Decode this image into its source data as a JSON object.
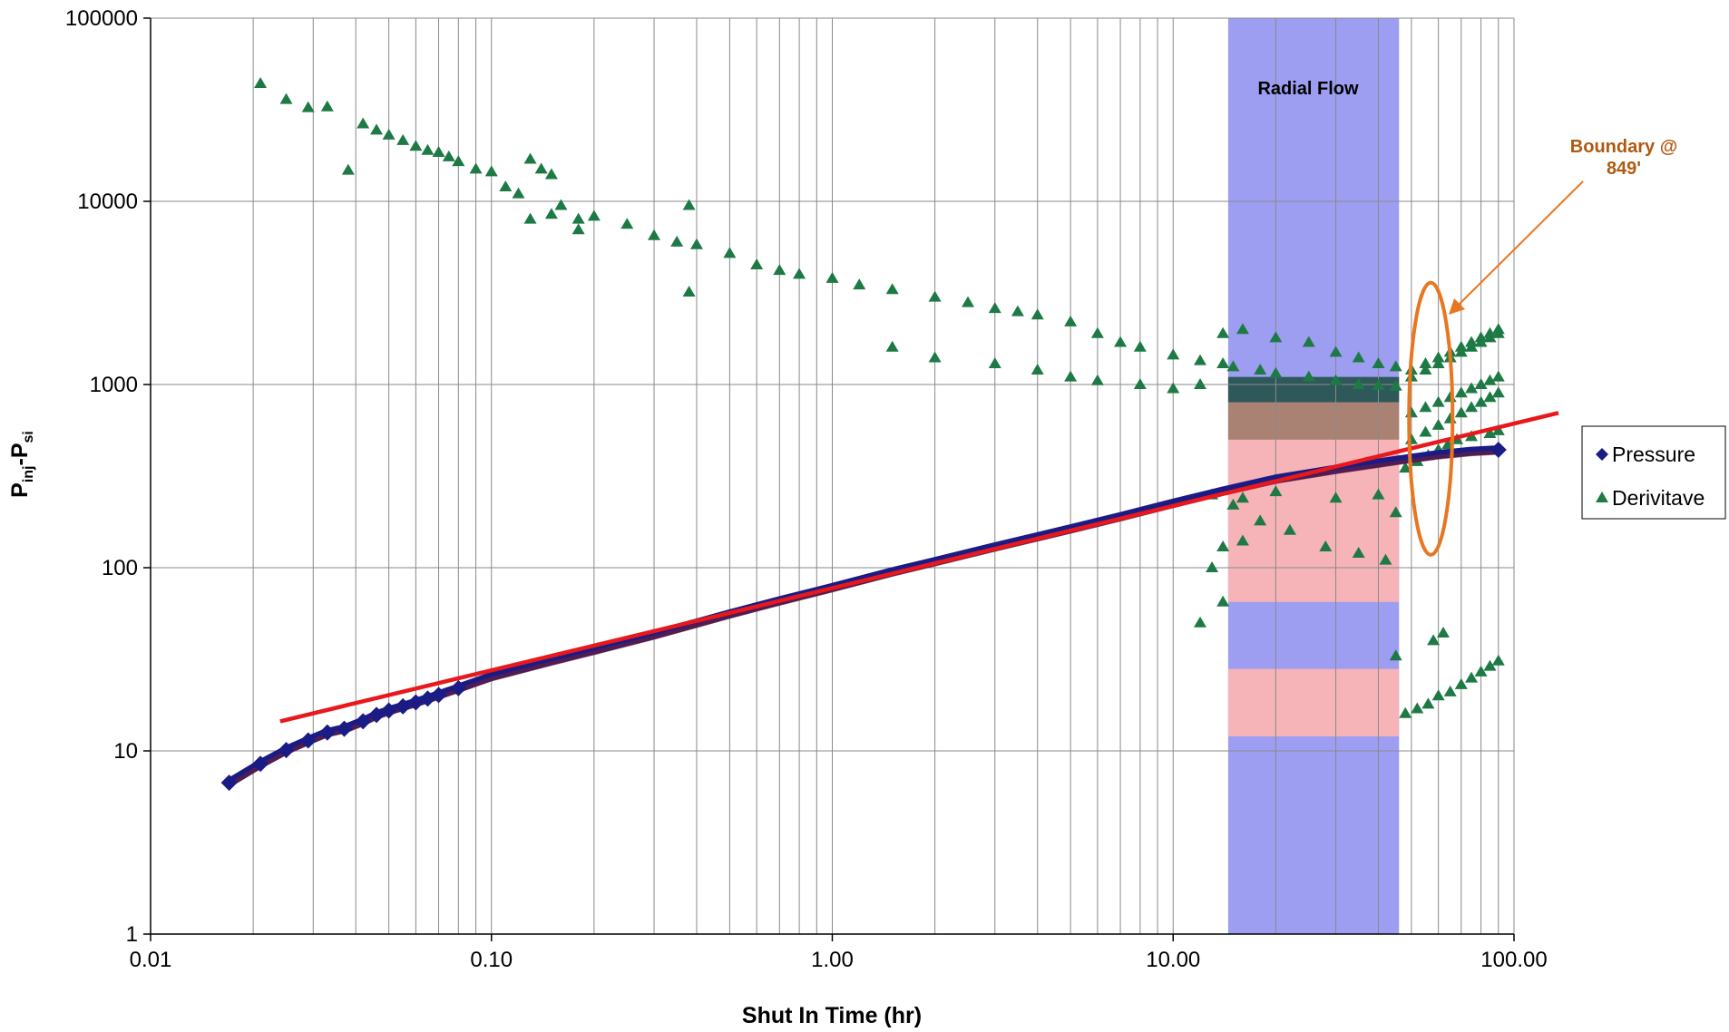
{
  "chart_data": {
    "type": "scatter",
    "xscale": "log",
    "yscale": "log",
    "xlim": [
      0.01,
      100
    ],
    "ylim": [
      1,
      100000
    ],
    "grid": true,
    "xlabel": "Shut In Time (hr)",
    "ylabel_main": "P",
    "ylabel_sub1": "inj",
    "ylabel_mid": "-P",
    "ylabel_sub2": "si",
    "x_tick_labels": [
      "0.01",
      "0.10",
      "1.00",
      "10.00",
      "100.00"
    ],
    "y_tick_labels": [
      "1",
      "10",
      "100",
      "1000",
      "10000",
      "100000"
    ],
    "legend_position": "right",
    "band_label": "Radial Flow",
    "band_x": [
      14.5,
      46
    ],
    "annotation": {
      "text_line1": "Boundary @",
      "text_line2": "849'",
      "x": 57,
      "y": 650,
      "color": "#e87722"
    },
    "colors": {
      "pressure": "#1b1b86",
      "derivative": "#1e7a45",
      "fit_line": "#e8181c",
      "band": "#9d9ef2",
      "band_pink": "#f6b3b8",
      "annotation_text": "#b05a10"
    },
    "fit_line": {
      "x": [
        0.024,
        135
      ],
      "y": [
        14.5,
        700
      ]
    },
    "series": [
      {
        "name": "Pressure",
        "marker": "diamond",
        "x": [
          0.017,
          0.021,
          0.025,
          0.029,
          0.033,
          0.037,
          0.042,
          0.046,
          0.05,
          0.055,
          0.06,
          0.065,
          0.07,
          0.08,
          0.09,
          0.1,
          0.15,
          0.2,
          0.3,
          0.5,
          0.7,
          1.0,
          1.5,
          2,
          3,
          5,
          7,
          10,
          14,
          20,
          30,
          45,
          60,
          75,
          90
        ],
        "y": [
          6.7,
          8.5,
          10.1,
          11.4,
          12.6,
          13.2,
          14.5,
          15.7,
          16.6,
          17.5,
          18.4,
          19.3,
          20.2,
          22,
          23.8,
          25.5,
          31,
          35.5,
          43,
          56,
          66,
          78,
          95,
          108,
          130,
          163,
          190,
          225,
          262,
          305,
          345,
          385,
          415,
          432,
          440
        ]
      },
      {
        "name": "Derivitave",
        "marker": "triangle",
        "x": [
          0.021,
          0.025,
          0.029,
          0.033,
          0.038,
          0.042,
          0.046,
          0.05,
          0.055,
          0.06,
          0.065,
          0.07,
          0.075,
          0.08,
          0.09,
          0.1,
          0.11,
          0.12,
          0.13,
          0.14,
          0.15,
          0.16,
          0.18,
          0.2,
          0.25,
          0.3,
          0.35,
          0.38,
          0.4,
          0.5,
          0.6,
          0.7,
          0.8,
          1.0,
          1.2,
          1.5,
          2,
          2.5,
          3,
          3.5,
          4,
          5,
          6,
          7,
          8,
          10,
          12,
          14,
          15,
          18,
          20,
          25,
          30,
          35,
          40,
          45,
          0.13,
          0.15,
          0.18,
          0.38,
          1.5,
          2,
          3,
          4,
          5,
          6,
          8,
          10,
          12,
          14,
          16,
          20,
          25,
          30,
          35,
          40,
          45,
          50,
          55,
          60,
          65,
          70,
          75,
          80,
          85,
          90,
          50,
          55,
          60,
          65,
          70,
          75,
          80,
          85,
          90,
          50,
          55,
          60,
          65,
          70,
          75,
          80,
          85,
          90,
          50,
          55,
          60,
          65,
          70,
          75,
          80,
          85,
          90,
          48,
          52,
          56,
          60,
          64,
          68,
          75,
          85,
          90,
          13,
          14,
          16,
          45,
          58,
          62,
          48,
          52,
          56,
          60,
          65,
          70,
          75,
          80,
          85,
          90,
          13,
          15,
          18,
          22,
          28,
          35,
          42,
          12,
          14,
          16,
          20,
          30,
          40,
          45
        ],
        "y": [
          44000,
          36000,
          32500,
          32800,
          14800,
          26500,
          24500,
          23000,
          21500,
          20000,
          19000,
          18500,
          17500,
          16500,
          15000,
          14500,
          12000,
          11000,
          17000,
          15000,
          14000,
          9500,
          8000,
          8300,
          7500,
          6500,
          6000,
          9500,
          5800,
          5200,
          4500,
          4200,
          4000,
          3800,
          3500,
          3300,
          3000,
          2800,
          2600,
          2500,
          2400,
          2200,
          1900,
          1700,
          1600,
          1450,
          1350,
          1300,
          1250,
          1200,
          1150,
          1100,
          1050,
          1000,
          990,
          980,
          8000,
          8500,
          7000,
          3200,
          1600,
          1400,
          1300,
          1200,
          1100,
          1050,
          1000,
          950,
          1000,
          1900,
          2000,
          1800,
          1700,
          1500,
          1400,
          1300,
          1250,
          1200,
          1300,
          1400,
          1500,
          1600,
          1700,
          1800,
          1900,
          2000,
          1100,
          1200,
          1300,
          1400,
          1500,
          1600,
          1700,
          1800,
          1900,
          700,
          750,
          800,
          850,
          900,
          950,
          1000,
          1050,
          1100,
          500,
          550,
          600,
          650,
          700,
          750,
          800,
          850,
          900,
          350,
          380,
          410,
          440,
          470,
          500,
          520,
          540,
          560,
          100,
          130,
          140,
          33,
          40,
          44,
          16,
          17,
          18,
          20,
          21,
          23,
          25,
          27,
          29,
          31,
          250,
          220,
          180,
          160,
          130,
          120,
          110,
          50,
          65,
          240,
          260,
          240,
          250,
          200
        ]
      }
    ]
  }
}
